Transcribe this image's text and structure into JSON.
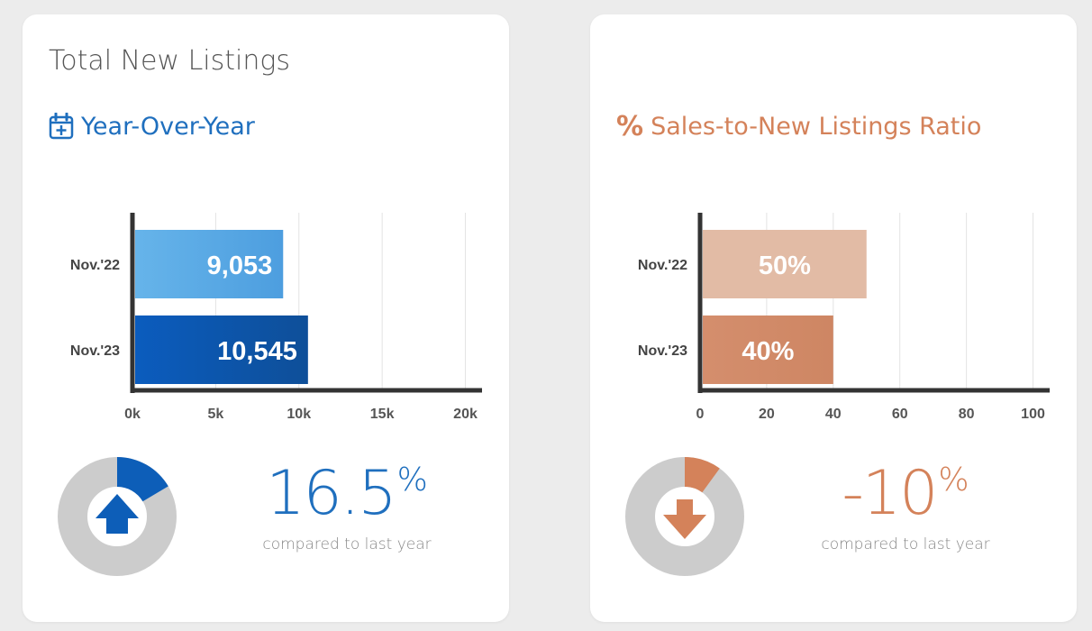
{
  "colors": {
    "blue_dark": "#0d5eb8",
    "blue_text": "#1f6fbe",
    "blue_light": "#5aaae6",
    "orange": "#d4825a",
    "orange_light": "#e2bba5",
    "donut_gray": "#cccccc",
    "axis": "#333333"
  },
  "left_card": {
    "title": "Total New Listings",
    "subtitle": "Year-Over-Year",
    "subtitle_icon": "calendar-plus-icon",
    "change": {
      "value": "16.5",
      "unit": "%",
      "caption": "compared to last year",
      "direction": "up",
      "donut_fraction": 0.165
    }
  },
  "right_card": {
    "title": "",
    "subtitle": "Sales-to-New Listings Ratio",
    "subtitle_icon": "percent-icon",
    "subtitle_icon_glyph": "%",
    "change": {
      "value": "-10",
      "unit": "%",
      "caption": "compared to last year",
      "direction": "down",
      "donut_fraction": 0.1
    }
  },
  "chart_data": [
    {
      "type": "bar",
      "orientation": "horizontal",
      "categories": [
        "Nov.'22",
        "Nov.'23"
      ],
      "values": [
        9053,
        10545
      ],
      "data_labels": [
        "9,053",
        "10,545"
      ],
      "xlim": [
        0,
        21000
      ],
      "xticks": [
        0,
        5000,
        10000,
        15000,
        20000
      ],
      "xtick_labels": [
        "0k",
        "5k",
        "10k",
        "15k",
        "20k"
      ],
      "grid": true
    },
    {
      "type": "bar",
      "orientation": "horizontal",
      "categories": [
        "Nov.'22",
        "Nov.'23"
      ],
      "values": [
        50,
        40
      ],
      "data_labels": [
        "50%",
        "40%"
      ],
      "xlim": [
        0,
        105
      ],
      "xticks": [
        0,
        20,
        40,
        60,
        80,
        100
      ],
      "xtick_labels": [
        "0",
        "20",
        "40",
        "60",
        "80",
        "100"
      ],
      "grid": true
    }
  ]
}
